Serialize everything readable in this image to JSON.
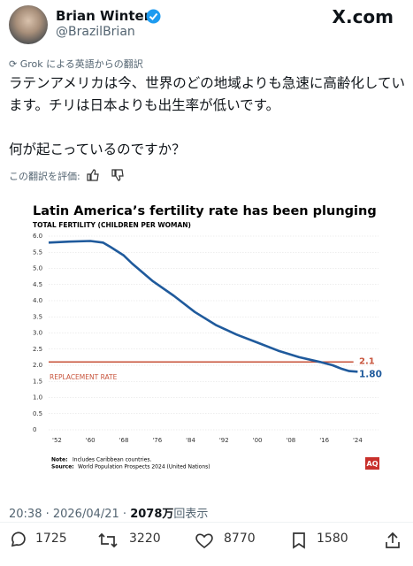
{
  "tweet": {
    "author": {
      "name": "Brian Winter",
      "handle": "@BrazilBrian"
    },
    "site": "X.com",
    "translation_note": "Grok による英語からの翻訳",
    "text": [
      "ラテンアメリカは今、世界のどの地域よりも急速に高齢化しています。チリは日本よりも出生率が低いです。",
      "何が起こっているのですか？"
    ],
    "rate_prompt": "この翻訳を評価:",
    "timestamp": "20:38 · 2026/04/21 · ",
    "views": "2078万",
    "views_suffix": "回表示",
    "stats": {
      "replies": 1725,
      "reposts": 3220,
      "likes": 8770,
      "bookmarks": 1580
    }
  },
  "chart_data": {
    "type": "line",
    "title": "Latin America’s fertility rate has been plunging",
    "subtitle": "TOTAL FERTILITY (CHILDREN PER WOMAN)",
    "x": [
      1950,
      1955,
      1960,
      1963,
      1965,
      1968,
      1970,
      1975,
      1980,
      1985,
      1990,
      1995,
      2000,
      2005,
      2010,
      2015,
      2018,
      2020,
      2022,
      2024
    ],
    "series": [
      {
        "color": "#1f5a9c",
        "values": [
          5.8,
          5.83,
          5.85,
          5.8,
          5.65,
          5.4,
          5.15,
          4.6,
          4.15,
          3.65,
          3.25,
          2.95,
          2.7,
          2.45,
          2.25,
          2.1,
          2.0,
          1.9,
          1.82,
          1.8
        ]
      }
    ],
    "end_label": {
      "value": 1.8,
      "label": "1.80"
    },
    "reference_line": {
      "value": 2.1,
      "value_label": "2.1",
      "label": "REPLACEMENT RATE",
      "color": "#c8553d"
    },
    "xlim": [
      1950,
      2029
    ],
    "ylim": [
      0,
      6
    ],
    "xticks": [
      {
        "value": 1952,
        "label": "'52"
      },
      {
        "value": 1960,
        "label": "'60"
      },
      {
        "value": 1968,
        "label": "'68"
      },
      {
        "value": 1976,
        "label": "'76"
      },
      {
        "value": 1984,
        "label": "'84"
      },
      {
        "value": 1992,
        "label": "'92"
      },
      {
        "value": 2000,
        "label": "'00"
      },
      {
        "value": 2008,
        "label": "'08"
      },
      {
        "value": 2016,
        "label": "'16"
      },
      {
        "value": 2024,
        "label": "'24"
      }
    ],
    "yticks": [
      0,
      {
        "value": 0.5,
        "label": "0.5"
      },
      {
        "value": 1,
        "label": "1.0"
      },
      {
        "value": 1.5,
        "label": "1.5"
      },
      {
        "value": 2,
        "label": "2.0"
      },
      {
        "value": 2.5,
        "label": "2.5"
      },
      {
        "value": 3,
        "label": "3.0"
      },
      {
        "value": 3.5,
        "label": "3.5"
      },
      {
        "value": 4,
        "label": "4.0"
      },
      {
        "value": 4.5,
        "label": "4.5"
      },
      {
        "value": 5,
        "label": "5.0"
      },
      {
        "value": 5.5,
        "label": "5.5"
      },
      {
        "value": 6,
        "label": "6.0"
      }
    ],
    "grid": true,
    "note_label": "Note:",
    "note": "Includes Caribbean countries.",
    "source_label": "Source:",
    "source": "World Population Prospects 2024 (United Nations)",
    "logo": "AQ"
  }
}
